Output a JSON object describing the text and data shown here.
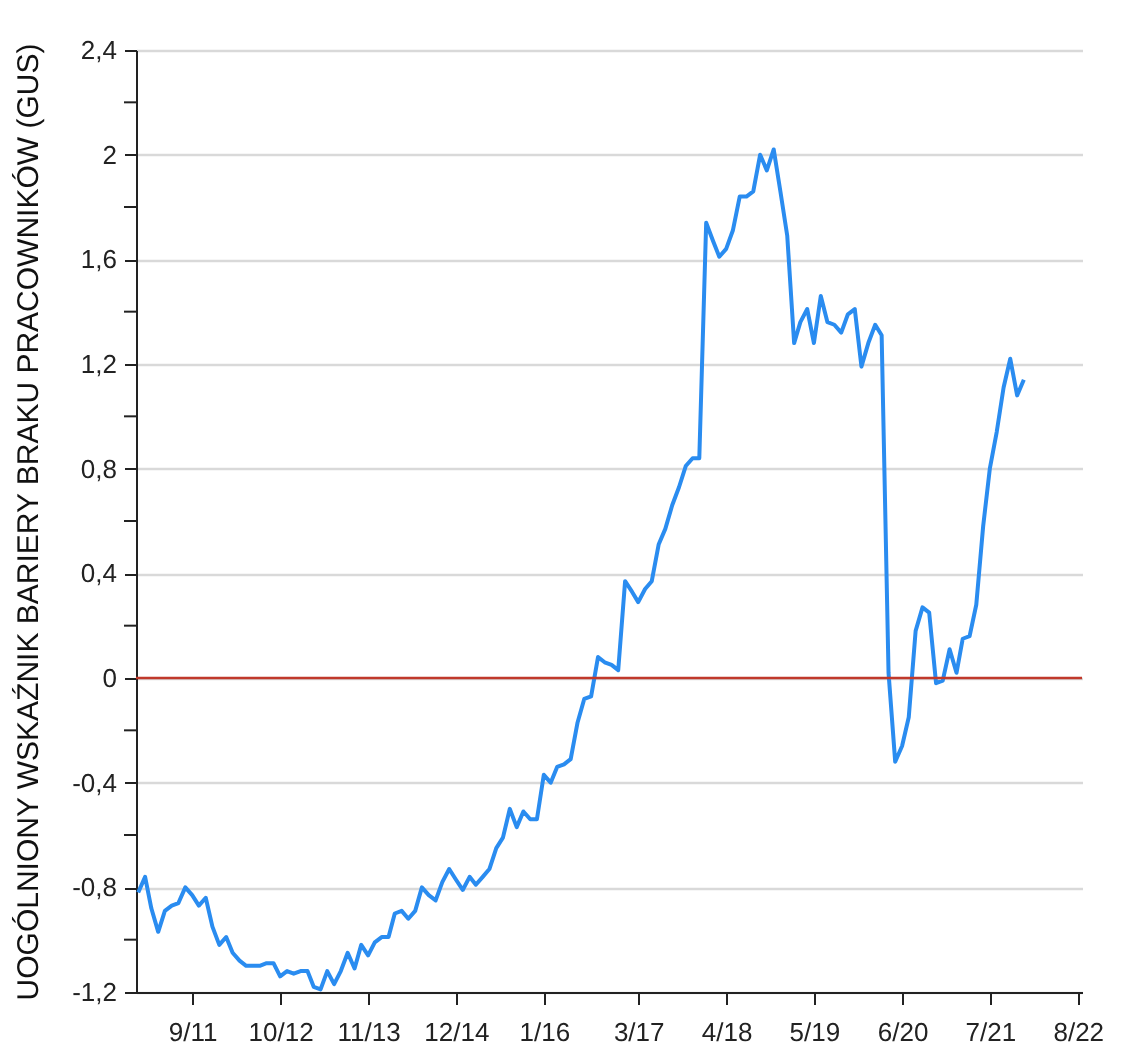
{
  "chart_data": {
    "type": "line",
    "ylabel": "UOGÓLNIONY WSKAŹNIK BARIERY BRAKU PRACOWNIKÓW (GUS)",
    "x": [
      "2011-01",
      "2011-02",
      "2011-03",
      "2011-04",
      "2011-05",
      "2011-06",
      "2011-07",
      "2011-08",
      "2011-09",
      "2011-10",
      "2011-11",
      "2011-12",
      "2012-01",
      "2012-02",
      "2012-03",
      "2012-04",
      "2012-05",
      "2012-06",
      "2012-07",
      "2012-08",
      "2012-09",
      "2012-10",
      "2012-11",
      "2012-12",
      "2013-01",
      "2013-02",
      "2013-03",
      "2013-04",
      "2013-05",
      "2013-06",
      "2013-07",
      "2013-08",
      "2013-09",
      "2013-10",
      "2013-11",
      "2013-12",
      "2014-01",
      "2014-02",
      "2014-03",
      "2014-04",
      "2014-05",
      "2014-06",
      "2014-07",
      "2014-08",
      "2014-09",
      "2014-10",
      "2014-11",
      "2014-12",
      "2015-01",
      "2015-02",
      "2015-03",
      "2015-04",
      "2015-05",
      "2015-06",
      "2015-07",
      "2015-08",
      "2015-09",
      "2015-10",
      "2015-11",
      "2015-12",
      "2016-01",
      "2016-02",
      "2016-03",
      "2016-04",
      "2016-05",
      "2016-06",
      "2016-07",
      "2016-08",
      "2016-09",
      "2016-10",
      "2016-11",
      "2016-12",
      "2017-01",
      "2017-02",
      "2017-03",
      "2017-04",
      "2017-05",
      "2017-06",
      "2017-07",
      "2017-08",
      "2017-09",
      "2017-10",
      "2017-11",
      "2017-12",
      "2018-01",
      "2018-02",
      "2018-03",
      "2018-04",
      "2018-05",
      "2018-06",
      "2018-07",
      "2018-08",
      "2018-09",
      "2018-10",
      "2018-11",
      "2018-12",
      "2019-01",
      "2019-02",
      "2019-03",
      "2019-04",
      "2019-05",
      "2019-06",
      "2019-07",
      "2019-08",
      "2019-09",
      "2019-10",
      "2019-11",
      "2019-12",
      "2020-01",
      "2020-02",
      "2020-03",
      "2020-04",
      "2020-05",
      "2020-06",
      "2020-07",
      "2020-08",
      "2020-09",
      "2020-10",
      "2020-11",
      "2020-12",
      "2021-01",
      "2021-02",
      "2021-03",
      "2021-04",
      "2021-05",
      "2021-06",
      "2021-07",
      "2021-08",
      "2021-09",
      "2021-10",
      "2021-11",
      "2021-12"
    ],
    "series": [
      {
        "color": "#2a8cf0",
        "values": [
          -0.82,
          -0.76,
          -0.88,
          -0.97,
          -0.89,
          -0.87,
          -0.86,
          -0.8,
          -0.83,
          -0.87,
          -0.84,
          -0.95,
          -1.02,
          -0.99,
          -1.05,
          -1.08,
          -1.1,
          -1.1,
          -1.1,
          -1.09,
          -1.09,
          -1.14,
          -1.12,
          -1.13,
          -1.12,
          -1.12,
          -1.18,
          -1.19,
          -1.12,
          -1.17,
          -1.12,
          -1.05,
          -1.11,
          -1.02,
          -1.06,
          -1.01,
          -0.99,
          -0.99,
          -0.9,
          -0.89,
          -0.92,
          -0.89,
          -0.8,
          -0.83,
          -0.85,
          -0.78,
          -0.73,
          -0.77,
          -0.81,
          -0.76,
          -0.79,
          -0.76,
          -0.73,
          -0.65,
          -0.61,
          -0.5,
          -0.57,
          -0.51,
          -0.54,
          -0.54,
          -0.37,
          -0.4,
          -0.34,
          -0.33,
          -0.31,
          -0.17,
          -0.08,
          -0.07,
          0.08,
          0.06,
          0.05,
          0.03,
          0.37,
          0.33,
          0.29,
          0.34,
          0.37,
          0.51,
          0.57,
          0.66,
          0.73,
          0.81,
          0.84,
          0.84,
          1.74,
          1.67,
          1.61,
          1.64,
          1.71,
          1.84,
          1.84,
          1.86,
          2.0,
          1.94,
          2.02,
          1.86,
          1.69,
          1.28,
          1.36,
          1.41,
          1.28,
          1.46,
          1.36,
          1.35,
          1.32,
          1.39,
          1.41,
          1.19,
          1.28,
          1.35,
          1.31,
          0.02,
          -0.32,
          -0.26,
          -0.15,
          0.18,
          0.27,
          0.25,
          -0.02,
          -0.01,
          0.11,
          0.02,
          0.15,
          0.16,
          0.28,
          0.58,
          0.8,
          0.94,
          1.11,
          1.22,
          1.08,
          1.14
        ]
      }
    ],
    "xlim": [
      "2010-12-22",
      "2022-08-20"
    ],
    "xticks": [
      {
        "value": "2011-09",
        "label": "9/11"
      },
      {
        "value": "2012-10",
        "label": "10/12"
      },
      {
        "value": "2013-11",
        "label": "11/13"
      },
      {
        "value": "2014-12",
        "label": "12/14"
      },
      {
        "value": "2016-01",
        "label": "1/16"
      },
      {
        "value": "2017-03",
        "label": "3/17"
      },
      {
        "value": "2018-04",
        "label": "4/18"
      },
      {
        "value": "2019-05",
        "label": "5/19"
      },
      {
        "value": "2020-06",
        "label": "6/20"
      },
      {
        "value": "2021-07",
        "label": "7/21"
      },
      {
        "value": "2022-08",
        "label": "8/22"
      }
    ],
    "ylim": [
      -1.2,
      2.4
    ],
    "yticks": [
      {
        "value": -1.2,
        "label": "-1,2"
      },
      {
        "value": -1.0,
        "label": null
      },
      {
        "value": -0.8,
        "label": "-0,8"
      },
      {
        "value": -0.6,
        "label": null
      },
      {
        "value": -0.4,
        "label": "-0,4"
      },
      {
        "value": -0.2,
        "label": null
      },
      0,
      {
        "value": 0.2,
        "label": null
      },
      {
        "value": 0.4,
        "label": "0,4"
      },
      {
        "value": 0.6,
        "label": null
      },
      {
        "value": 0.8,
        "label": "0,8"
      },
      {
        "value": 1.0,
        "label": null
      },
      {
        "value": 1.2,
        "label": "1,2"
      },
      {
        "value": 1.4,
        "label": null
      },
      {
        "value": 1.6,
        "label": "1,6"
      },
      {
        "value": 1.8,
        "label": null
      },
      {
        "value": 2,
        "label": "2"
      },
      {
        "value": 2.2,
        "label": null
      },
      {
        "value": 2.4,
        "label": "2,4"
      }
    ],
    "grid": "y",
    "ref_lines": [
      {
        "axis": "y",
        "value": 0,
        "color": "#c0392b"
      }
    ],
    "marker": "none",
    "line_style": "solid"
  }
}
